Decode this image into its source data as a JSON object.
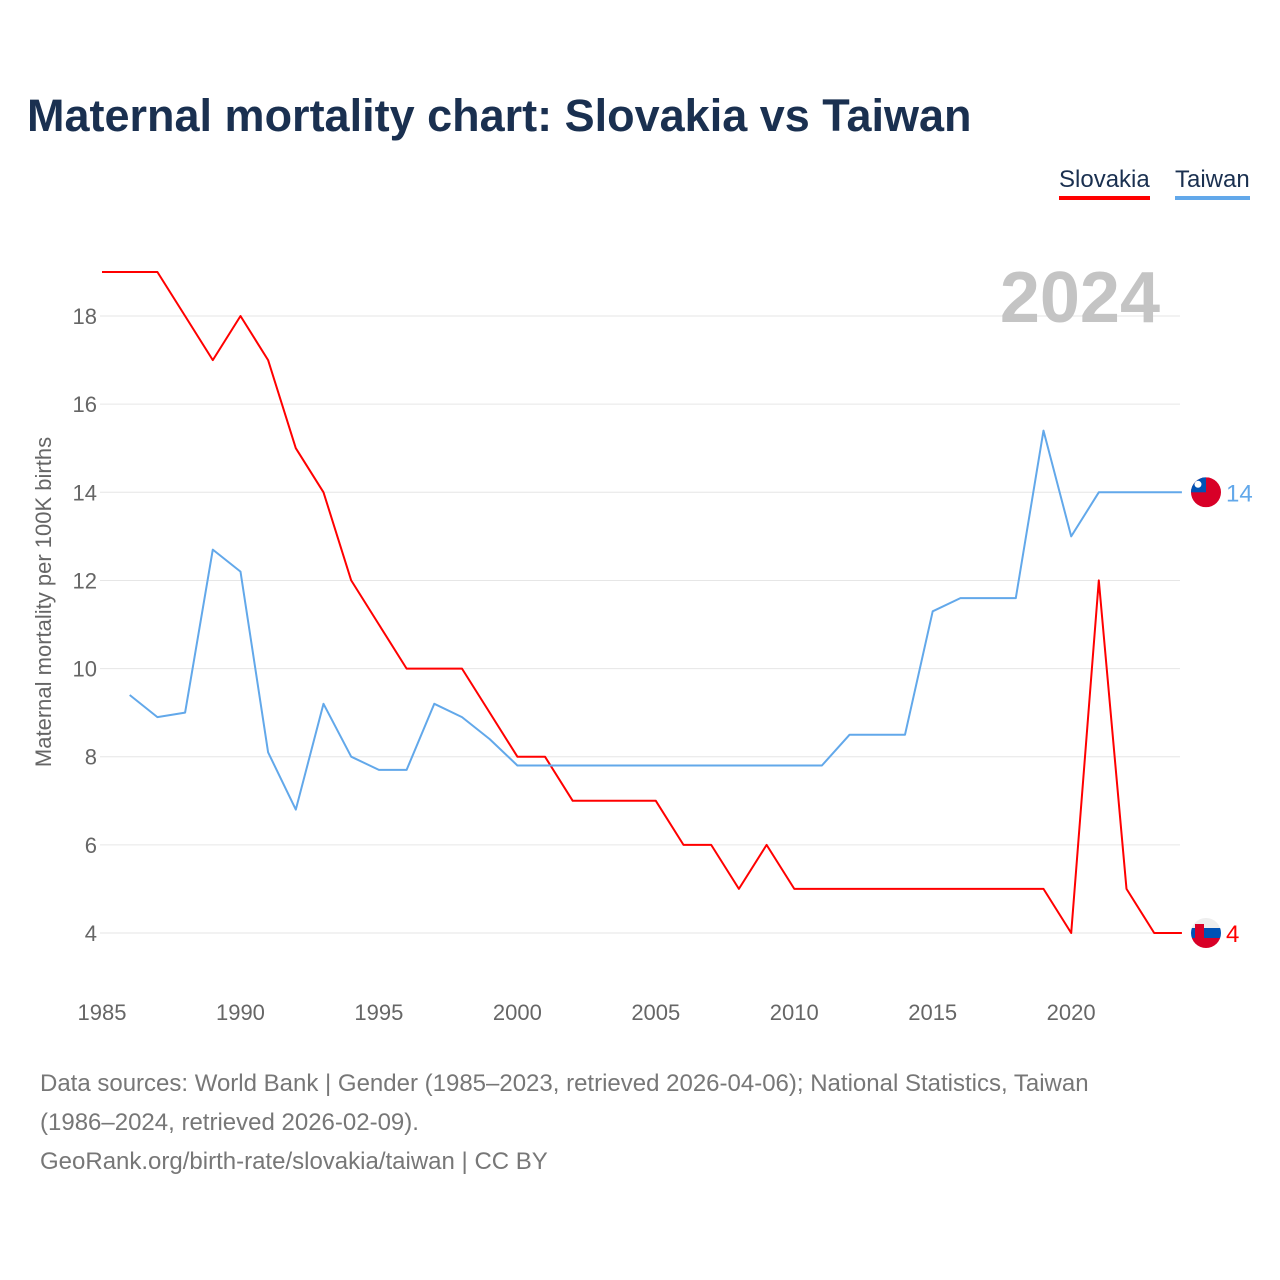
{
  "title": "Maternal mortality chart: Slovakia vs Taiwan",
  "year_watermark": "2024",
  "chart_data": {
    "type": "line",
    "title": "Maternal mortality chart: Slovakia vs Taiwan",
    "xlabel": "",
    "ylabel": "Maternal mortality per 100K births",
    "xlim": [
      1985,
      2024
    ],
    "ylim": [
      3,
      19.5
    ],
    "x_ticks": [
      "1985",
      "1990",
      "1995",
      "2000",
      "2005",
      "2010",
      "2015",
      "2020"
    ],
    "y_ticks": [
      "4",
      "6",
      "8",
      "10",
      "12",
      "14",
      "16",
      "18"
    ],
    "grid": true,
    "legend_position": "top-right",
    "series": [
      {
        "name": "Slovakia",
        "color": "#ff0000",
        "end_label": "4",
        "flag": "slovakia-flag",
        "x": [
          1985,
          1986,
          1987,
          1988,
          1989,
          1990,
          1991,
          1992,
          1993,
          1994,
          1995,
          1996,
          1997,
          1998,
          1999,
          2000,
          2001,
          2002,
          2003,
          2004,
          2005,
          2006,
          2007,
          2008,
          2009,
          2010,
          2011,
          2012,
          2013,
          2014,
          2015,
          2016,
          2017,
          2018,
          2019,
          2020,
          2021,
          2022,
          2023,
          2024
        ],
        "values": [
          19,
          19,
          19,
          18,
          17,
          18,
          17,
          15,
          14,
          12,
          11,
          10,
          10,
          10,
          9,
          8,
          8,
          7,
          7,
          7,
          7,
          6,
          6,
          5,
          6,
          5,
          5,
          5,
          5,
          5,
          5,
          5,
          5,
          5,
          5,
          4,
          12,
          5,
          4,
          4
        ]
      },
      {
        "name": "Taiwan",
        "color": "#62a8ea",
        "end_label": "14",
        "flag": "taiwan-flag",
        "x": [
          1986,
          1987,
          1988,
          1989,
          1990,
          1991,
          1992,
          1993,
          1994,
          1995,
          1996,
          1997,
          1998,
          1999,
          2000,
          2001,
          2002,
          2003,
          2004,
          2005,
          2006,
          2007,
          2008,
          2009,
          2010,
          2011,
          2012,
          2013,
          2014,
          2015,
          2016,
          2017,
          2018,
          2019,
          2020,
          2021,
          2022,
          2023,
          2024
        ],
        "values": [
          9.4,
          8.9,
          9.0,
          12.7,
          12.2,
          8.1,
          6.8,
          9.2,
          8.0,
          7.7,
          7.7,
          9.2,
          8.9,
          8.4,
          7.8,
          7.8,
          7.8,
          7.8,
          7.8,
          7.8,
          7.8,
          7.8,
          7.8,
          7.8,
          7.8,
          7.8,
          8.5,
          8.5,
          8.5,
          11.3,
          11.6,
          11.6,
          11.6,
          15.4,
          13.0,
          14,
          14,
          14,
          14
        ]
      }
    ]
  },
  "sources": {
    "line1": "Data sources: World Bank | Gender (1985–2023, retrieved 2026-04-06); National Statistics, Taiwan",
    "line2": "(1986–2024, retrieved 2026-02-09).",
    "line3": "GeoRank.org/birth-rate/slovakia/taiwan | CC BY"
  }
}
